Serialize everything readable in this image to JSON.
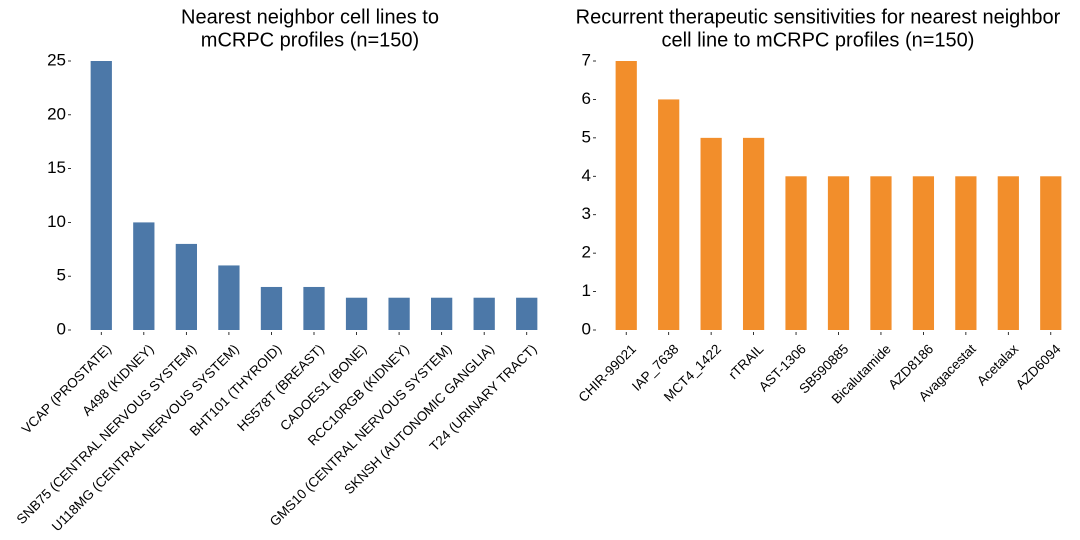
{
  "chart_data": [
    {
      "type": "bar",
      "title_lines": [
        "Nearest neighbor cell lines to",
        "mCRPC profiles (n=150)"
      ],
      "categories": [
        "VCAP (PROSTATE)",
        "A498 (KIDNEY)",
        "SNB75 (CENTRAL NERVOUS SYSTEM)",
        "U118MG (CENTRAL NERVOUS SYSTEM)",
        "BHT101 (THYROID)",
        "HS578T (BREAST)",
        "CADOES1 (BONE)",
        "RCC10RGB (KIDNEY)",
        "GMS10 (CENTRAL NERVOUS SYSTEM)",
        "SKNSH (AUTONOMIC GANGLIA)",
        "T24 (URINARY TRACT)"
      ],
      "values": [
        25,
        10,
        8,
        6,
        4,
        4,
        3,
        3,
        3,
        3,
        3
      ],
      "yticks": [
        0,
        5,
        10,
        15,
        20,
        25
      ],
      "ylim": [
        0,
        25
      ],
      "color": "#4c78a8",
      "grid": false
    },
    {
      "type": "bar",
      "title_lines": [
        "Recurrent therapeutic sensitivities for nearest neighbor",
        "cell line to mCRPC profiles (n=150)"
      ],
      "categories": [
        "CHIR-99021",
        "IAP_7638",
        "MCT4_1422",
        "rTRAIL",
        "AST-1306",
        "SB590885",
        "Bicalutamide",
        "AZD8186",
        "Avagacestat",
        "Acetalax",
        "AZD6094"
      ],
      "values": [
        7,
        6,
        5,
        5,
        4,
        4,
        4,
        4,
        4,
        4,
        4
      ],
      "yticks": [
        0,
        1,
        2,
        3,
        4,
        5,
        6,
        7
      ],
      "ylim": [
        0,
        7
      ],
      "color": "#f28e2b",
      "grid": false
    }
  ]
}
